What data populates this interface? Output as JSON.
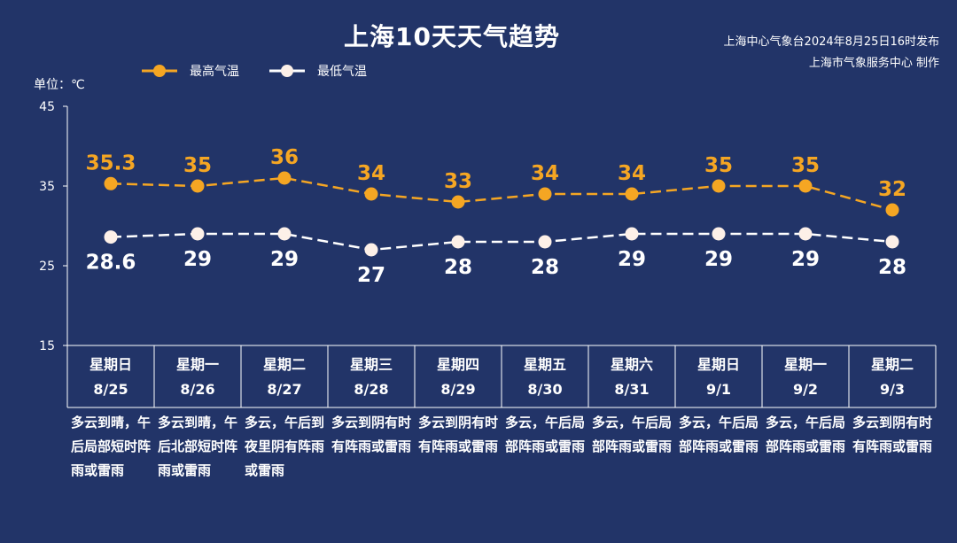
{
  "header": {
    "title": "上海10天天气趋势",
    "credit_line1": "上海中心气象台2024年8月25日16时发布",
    "credit_line2": "上海市气象服务中心 制作",
    "unit": "单位：℃"
  },
  "legend": {
    "high_label": "最高气温",
    "low_label": "最低气温"
  },
  "colors": {
    "background": "#223468",
    "high": "#f5a623",
    "low": "#ffffff",
    "axis": "#ffffff"
  },
  "chart_data": {
    "type": "line",
    "title": "上海10天天气趋势",
    "ylabel": "单位：℃",
    "ylim": [
      15,
      45
    ],
    "yticks": [
      15,
      25,
      35,
      45
    ],
    "grid": false,
    "legend_position": "top-left",
    "categories": [
      "8/25",
      "8/26",
      "8/27",
      "8/28",
      "8/29",
      "8/30",
      "8/31",
      "9/1",
      "9/2",
      "9/3"
    ],
    "series": [
      {
        "name": "最高气温",
        "values": [
          35.3,
          35,
          36,
          34,
          33,
          34,
          34,
          35,
          35,
          32
        ],
        "labels": [
          "35.3",
          "35",
          "36",
          "34",
          "33",
          "34",
          "34",
          "35",
          "35",
          "32"
        ]
      },
      {
        "name": "最低气温",
        "values": [
          28.6,
          29,
          29,
          27,
          28,
          28,
          29,
          29,
          29,
          28
        ],
        "labels": [
          "28.6",
          "29",
          "29",
          "27",
          "28",
          "28",
          "29",
          "29",
          "29",
          "28"
        ]
      }
    ]
  },
  "days": [
    {
      "weekday": "星期日",
      "date": "8/25",
      "desc": "多云到晴，午后局部短时阵雨或雷雨"
    },
    {
      "weekday": "星期一",
      "date": "8/26",
      "desc": "多云到晴，午后北部短时阵雨或雷雨"
    },
    {
      "weekday": "星期二",
      "date": "8/27",
      "desc": "多云，午后到夜里阴有阵雨或雷雨"
    },
    {
      "weekday": "星期三",
      "date": "8/28",
      "desc": "多云到阴有时有阵雨或雷雨"
    },
    {
      "weekday": "星期四",
      "date": "8/29",
      "desc": "多云到阴有时有阵雨或雷雨"
    },
    {
      "weekday": "星期五",
      "date": "8/30",
      "desc": "多云，午后局部阵雨或雷雨"
    },
    {
      "weekday": "星期六",
      "date": "8/31",
      "desc": "多云，午后局部阵雨或雷雨"
    },
    {
      "weekday": "星期日",
      "date": "9/1",
      "desc": "多云，午后局部阵雨或雷雨"
    },
    {
      "weekday": "星期一",
      "date": "9/2",
      "desc": "多云，午后局部阵雨或雷雨"
    },
    {
      "weekday": "星期二",
      "date": "9/3",
      "desc": "多云到阴有时有阵雨或雷雨"
    }
  ]
}
